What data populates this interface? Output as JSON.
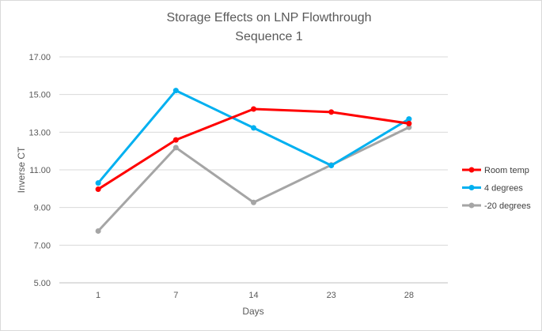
{
  "chart_data": {
    "type": "line",
    "title": "Storage Effects on LNP Flowthrough",
    "subtitle": "Sequence 1",
    "xlabel": "Days",
    "ylabel": "Inverse CT",
    "categories": [
      "1",
      "7",
      "14",
      "23",
      "28"
    ],
    "ylim": [
      5,
      17
    ],
    "yticks": [
      "5.00",
      "7.00",
      "9.00",
      "11.00",
      "13.00",
      "15.00",
      "17.00"
    ],
    "grid": true,
    "legend_position": "right",
    "series": [
      {
        "name": "Room temp",
        "color": "#ff0000",
        "values": [
          9.97,
          12.59,
          14.23,
          14.07,
          13.46
        ]
      },
      {
        "name": "4 degrees",
        "color": "#00b0f0",
        "values": [
          10.3,
          15.21,
          13.23,
          11.23,
          13.7
        ]
      },
      {
        "name": "-20 degrees",
        "color": "#a5a5a5",
        "values": [
          7.75,
          12.18,
          9.27,
          11.26,
          13.26
        ]
      }
    ]
  }
}
